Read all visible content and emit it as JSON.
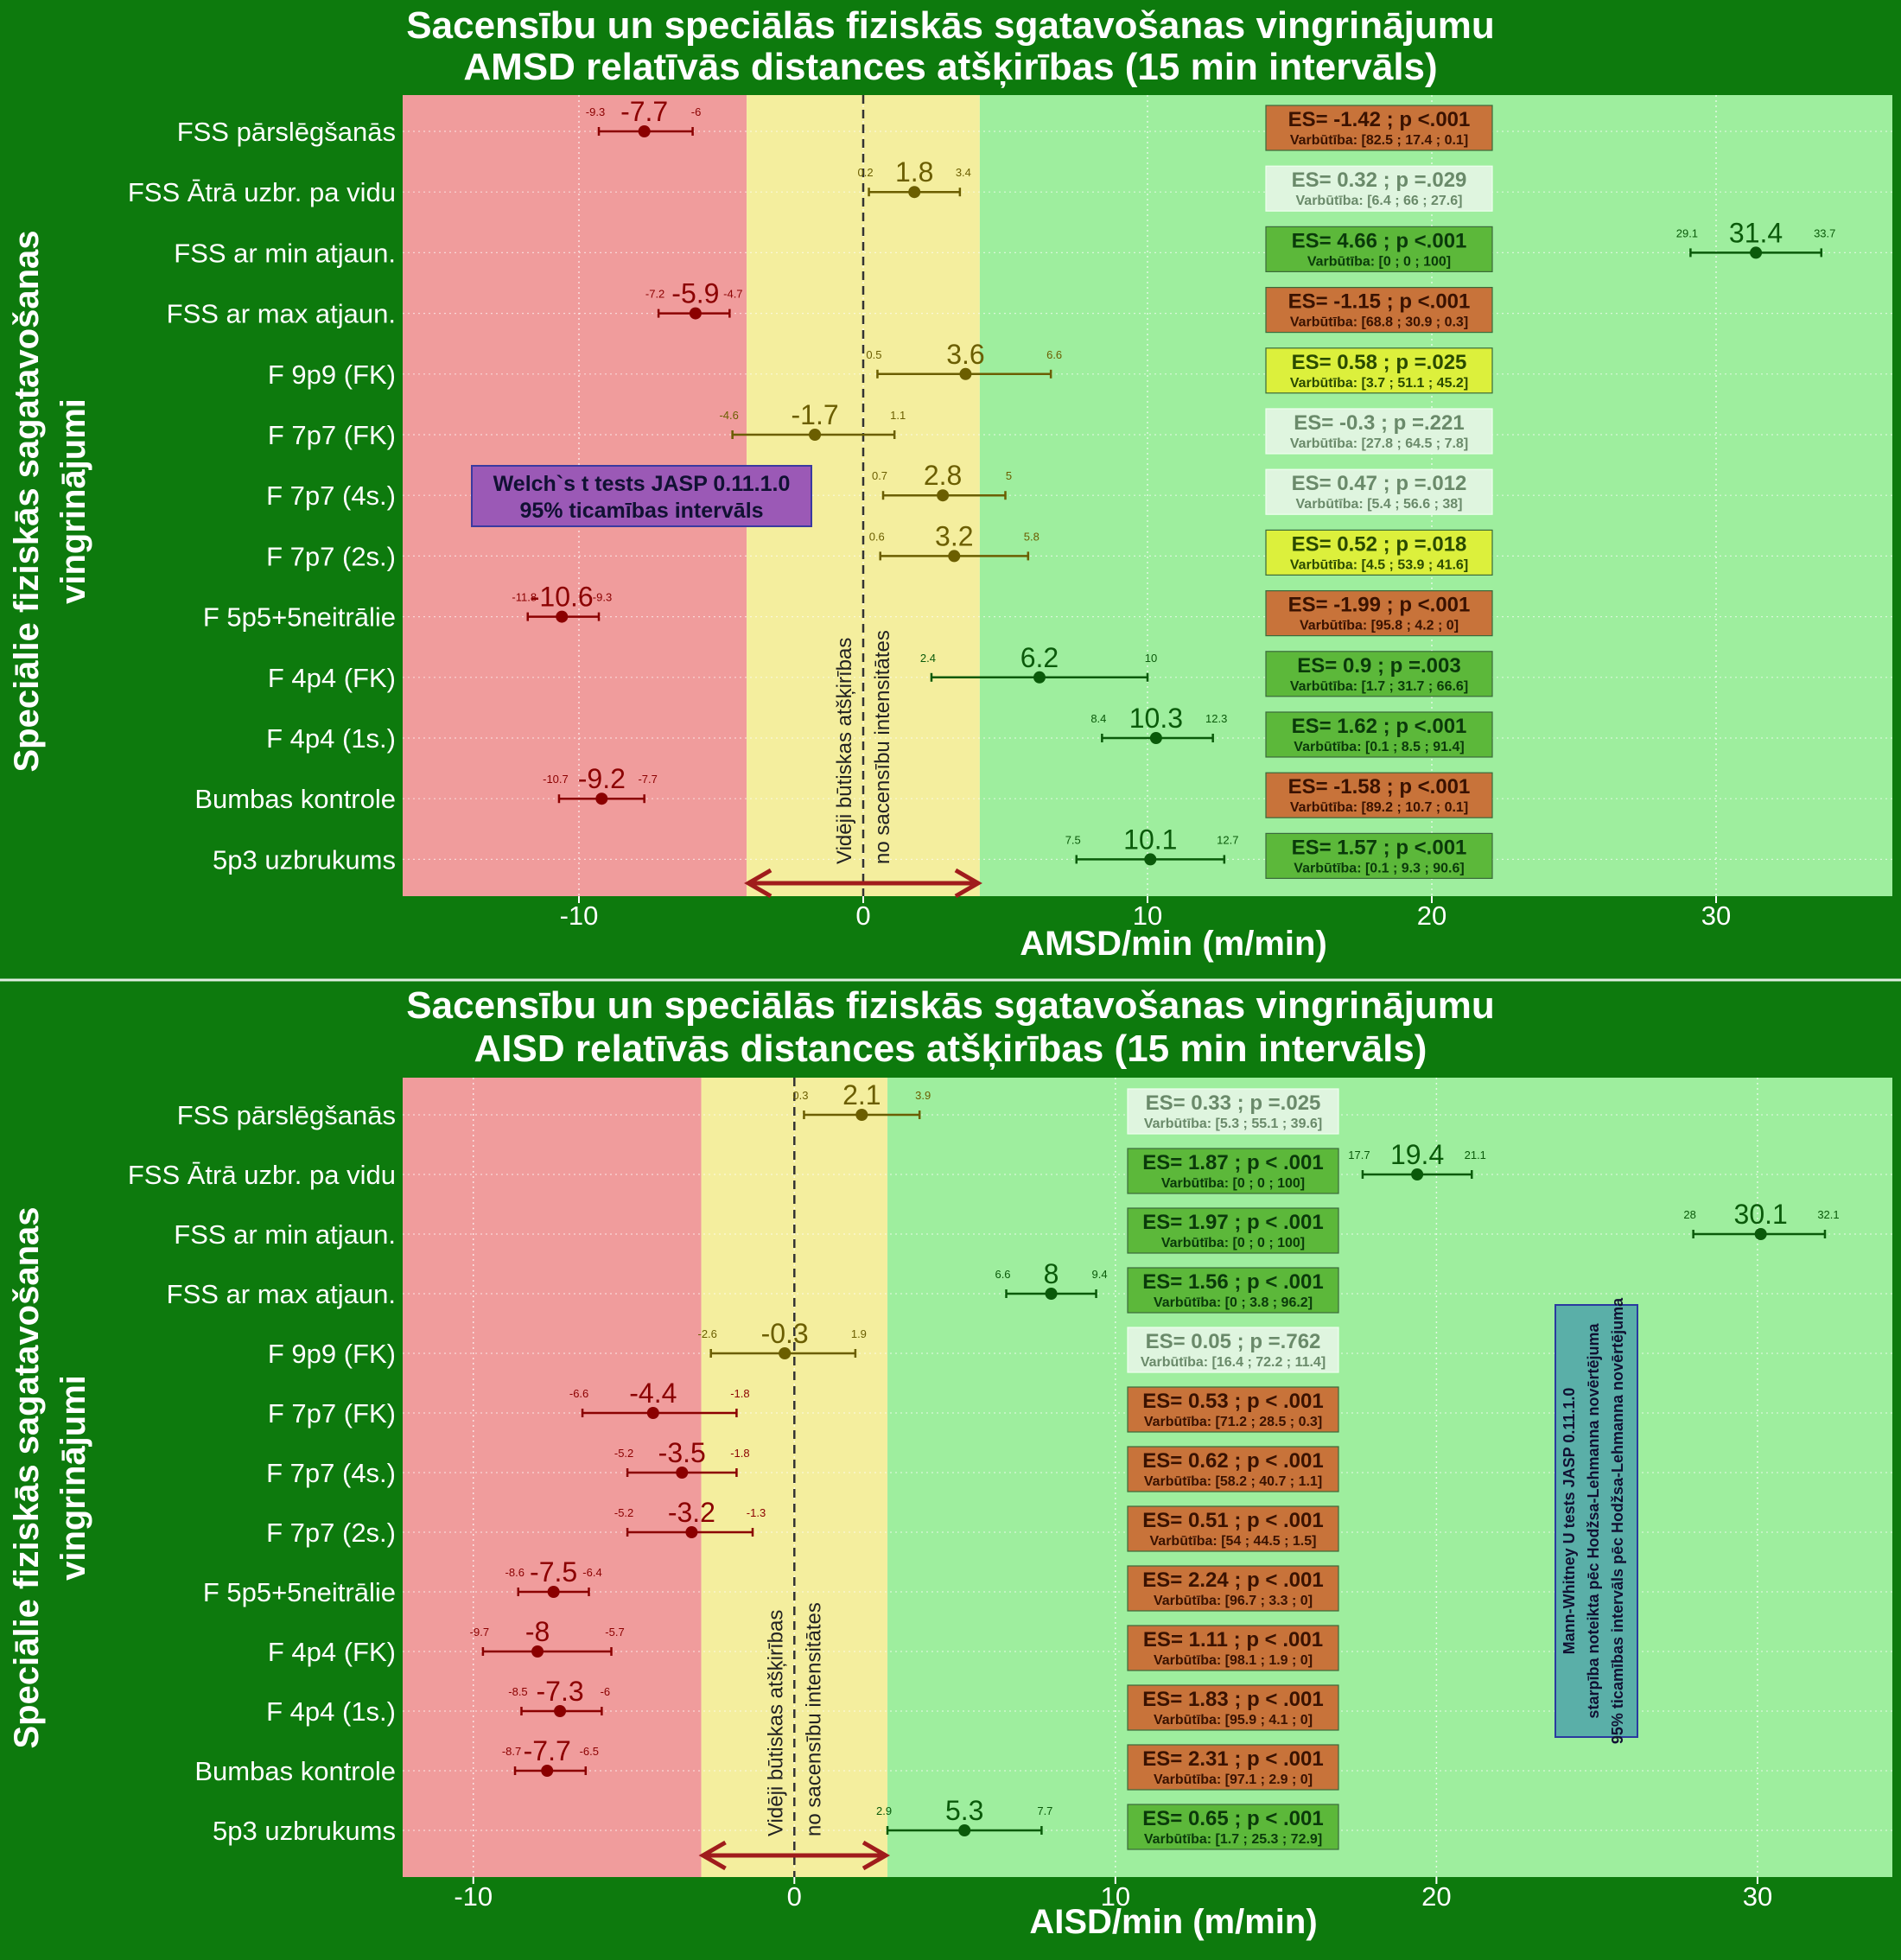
{
  "colors": {
    "background": "#0d7a0d",
    "zone_red": "#f09c9c",
    "zone_yellow": "#f4ee9e",
    "zone_green": "#9eee9e",
    "point_red": "#8b0000",
    "point_olive": "#6b5e00",
    "point_green": "#0a5a0a",
    "arrow": "#a01c1c",
    "es_red": "#c8733a",
    "es_green": "#5cb83a",
    "es_yellow": "#dcf03c",
    "es_pale": "#dff5df",
    "note_purple": "#9b59b6",
    "note_teal": "#5aafa8"
  },
  "chart_data": [
    {
      "type": "forest",
      "title_line1": "Sacensību un speciālās fiziskās sgatavošanas vingrinājumu",
      "title_line2": "AMSD relatīvās distances atšķirības (15 min intervāls)",
      "xlabel": "AMSD/min (m/min)",
      "ylabel_line1": "Speciālie fiziskās sagatavošanas",
      "ylabel_line2": "vingrinājumi",
      "xlim": [
        -16.2,
        36.2
      ],
      "xticks": [
        -10,
        0,
        10,
        20,
        30
      ],
      "zones": [
        {
          "name": "red",
          "from": -16.2,
          "to": -4.1
        },
        {
          "name": "yellow",
          "from": -4.1,
          "to": 4.1
        },
        {
          "name": "green",
          "from": 4.1,
          "to": 36.2
        }
      ],
      "zone_label_line1": "Vidēji būtiskas atšķirības",
      "zone_label_line2": "no sacensību intensitātes",
      "note_line1": "Welch`s t tests JASP 0.11.1.0",
      "note_line2": "95% ticamības intervāls",
      "rows": [
        {
          "label": "FSS pārslēgšanās",
          "est": -7.7,
          "lo": -9.3,
          "hi": -6,
          "est_label": "-7.7",
          "lo_label": "-9.3",
          "hi_label": "-6",
          "color": "red",
          "es_text": "ES= -1.42 ; p <.001",
          "prob_text": "Varbūtība: [82.5 ; 17.4 ; 0.1]",
          "es_color": "red"
        },
        {
          "label": "FSS Ātrā uzbr. pa vidu",
          "est": 1.8,
          "lo": 0.2,
          "hi": 3.4,
          "est_label": "1.8",
          "lo_label": "0.2",
          "hi_label": "3.4",
          "color": "olive",
          "es_text": "ES= 0.32 ; p =.029",
          "prob_text": "Varbūtība: [6.4 ; 66 ; 27.6]",
          "es_color": "pale"
        },
        {
          "label": "FSS ar min atjaun.",
          "est": 31.4,
          "lo": 29.1,
          "hi": 33.7,
          "est_label": "31.4",
          "lo_label": "29.1",
          "hi_label": "33.7",
          "color": "green",
          "es_text": "ES= 4.66 ; p <.001",
          "prob_text": "Varbūtība: [0 ; 0 ; 100]",
          "es_color": "green"
        },
        {
          "label": "FSS ar max atjaun.",
          "est": -5.9,
          "lo": -7.2,
          "hi": -4.7,
          "est_label": "-5.9",
          "lo_label": "-7.2",
          "hi_label": "-4.7",
          "color": "red",
          "es_text": "ES= -1.15 ; p <.001",
          "prob_text": "Varbūtība: [68.8 ; 30.9 ; 0.3]",
          "es_color": "red"
        },
        {
          "label": "F 9p9 (FK)",
          "est": 3.6,
          "lo": 0.5,
          "hi": 6.6,
          "est_label": "3.6",
          "lo_label": "0.5",
          "hi_label": "6.6",
          "color": "olive",
          "es_text": "ES= 0.58 ; p =.025",
          "prob_text": "Varbūtība: [3.7 ; 51.1 ; 45.2]",
          "es_color": "yellow"
        },
        {
          "label": "F 7p7 (FK)",
          "est": -1.7,
          "lo": -4.6,
          "hi": 1.1,
          "est_label": "-1.7",
          "lo_label": "-4.6",
          "hi_label": "1.1",
          "color": "olive",
          "es_text": "ES= -0.3 ; p =.221",
          "prob_text": "Varbūtība: [27.8 ; 64.5 ; 7.8]",
          "es_color": "pale"
        },
        {
          "label": "F 7p7 (4s.)",
          "est": 2.8,
          "lo": 0.7,
          "hi": 5,
          "est_label": "2.8",
          "lo_label": "0.7",
          "hi_label": "5",
          "color": "olive",
          "es_text": "ES= 0.47 ; p =.012",
          "prob_text": "Varbūtība: [5.4 ; 56.6 ; 38]",
          "es_color": "pale"
        },
        {
          "label": "F 7p7 (2s.)",
          "est": 3.2,
          "lo": 0.6,
          "hi": 5.8,
          "est_label": "3.2",
          "lo_label": "0.6",
          "hi_label": "5.8",
          "color": "olive",
          "es_text": "ES= 0.52 ; p =.018",
          "prob_text": "Varbūtība: [4.5 ; 53.9 ; 41.6]",
          "es_color": "yellow"
        },
        {
          "label": "F 5p5+5neitrālie",
          "est": -10.6,
          "lo": -11.8,
          "hi": -9.3,
          "est_label": "-10.6",
          "lo_label": "-11.8",
          "hi_label": "-9.3",
          "color": "red",
          "es_text": "ES= -1.99 ; p <.001",
          "prob_text": "Varbūtība: [95.8 ; 4.2 ; 0]",
          "es_color": "red"
        },
        {
          "label": "F 4p4 (FK)",
          "est": 6.2,
          "lo": 2.4,
          "hi": 10,
          "est_label": "6.2",
          "lo_label": "2.4",
          "hi_label": "10",
          "color": "green",
          "es_text": "ES= 0.9 ; p =.003",
          "prob_text": "Varbūtība: [1.7 ; 31.7 ; 66.6]",
          "es_color": "green"
        },
        {
          "label": "F 4p4 (1s.)",
          "est": 10.3,
          "lo": 8.4,
          "hi": 12.3,
          "est_label": "10.3",
          "lo_label": "8.4",
          "hi_label": "12.3",
          "color": "green",
          "es_text": "ES= 1.62 ; p <.001",
          "prob_text": "Varbūtība: [0.1 ; 8.5 ; 91.4]",
          "es_color": "green"
        },
        {
          "label": "Bumbas kontrole",
          "est": -9.2,
          "lo": -10.7,
          "hi": -7.7,
          "est_label": "-9.2",
          "lo_label": "-10.7",
          "hi_label": "-7.7",
          "color": "red",
          "es_text": "ES= -1.58 ; p <.001",
          "prob_text": "Varbūtība: [89.2 ; 10.7 ; 0.1]",
          "es_color": "red"
        },
        {
          "label": "5p3 uzbrukums",
          "est": 10.1,
          "lo": 7.5,
          "hi": 12.7,
          "est_label": "10.1",
          "lo_label": "7.5",
          "hi_label": "12.7",
          "color": "green",
          "es_text": "ES= 1.57 ; p <.001",
          "prob_text": "Varbūtība: [0.1 ; 9.3 ; 90.6]",
          "es_color": "green"
        }
      ]
    },
    {
      "type": "forest",
      "title_line1": "Sacensību un speciālās fiziskās sgatavošanas vingrinājumu",
      "title_line2": "AISD relatīvās distances atšķirības (15 min intervāls)",
      "xlabel": "AISD/min (m/min)",
      "ylabel_line1": "Speciālie fiziskās sagatavošanas",
      "ylabel_line2": "vingrinājumi",
      "xlim": [
        -12.2,
        34.2
      ],
      "xticks": [
        -10,
        0,
        10,
        20,
        30
      ],
      "zones": [
        {
          "name": "red",
          "from": -12.2,
          "to": -2.9
        },
        {
          "name": "yellow",
          "from": -2.9,
          "to": 2.9
        },
        {
          "name": "green",
          "from": 2.9,
          "to": 34.2
        }
      ],
      "zone_label_line1": "Vidēji būtiskas atšķirības",
      "zone_label_line2": "no sacensību intensitātes",
      "note_line1": "Mann-Whitney U tests JASP 0.11.1.0",
      "note_line2": "starpība noteikta pēc Hodžsa-Lehmanna novērtējuma",
      "note_line3": "95% ticamības intervāls pēc Hodžsa-Lehmanna novērtējuma",
      "rows": [
        {
          "label": "FSS pārslēgšanās",
          "est": 2.1,
          "lo": 0.3,
          "hi": 3.9,
          "est_label": "2.1",
          "lo_label": "0.3",
          "hi_label": "3.9",
          "color": "olive",
          "es_text": "ES= 0.33 ; p =.025",
          "prob_text": "Varbūtība: [5.3 ; 55.1 ; 39.6]",
          "es_color": "pale"
        },
        {
          "label": "FSS Ātrā uzbr. pa vidu",
          "est": 19.4,
          "lo": 17.7,
          "hi": 21.1,
          "est_label": "19.4",
          "lo_label": "17.7",
          "hi_label": "21.1",
          "color": "green",
          "es_text": "ES= 1.87 ; p < .001",
          "prob_text": "Varbūtība: [0 ; 0 ; 100]",
          "es_color": "green"
        },
        {
          "label": "FSS ar min atjaun.",
          "est": 30.1,
          "lo": 28,
          "hi": 32.1,
          "est_label": "30.1",
          "lo_label": "28",
          "hi_label": "32.1",
          "color": "green",
          "es_text": "ES= 1.97 ; p < .001",
          "prob_text": "Varbūtība: [0 ; 0 ; 100]",
          "es_color": "green"
        },
        {
          "label": "FSS ar max atjaun.",
          "est": 8,
          "lo": 6.6,
          "hi": 9.4,
          "est_label": "8",
          "lo_label": "6.6",
          "hi_label": "9.4",
          "color": "green",
          "es_text": "ES= 1.56 ; p < .001",
          "prob_text": "Varbūtība: [0 ; 3.8 ; 96.2]",
          "es_color": "green"
        },
        {
          "label": "F 9p9 (FK)",
          "est": -0.3,
          "lo": -2.6,
          "hi": 1.9,
          "est_label": "-0.3",
          "lo_label": "-2.6",
          "hi_label": "1.9",
          "color": "olive",
          "es_text": "ES= 0.05 ; p =.762",
          "prob_text": "Varbūtība: [16.4 ; 72.2 ; 11.4]",
          "es_color": "pale"
        },
        {
          "label": "F 7p7 (FK)",
          "est": -4.4,
          "lo": -6.6,
          "hi": -1.8,
          "est_label": "-4.4",
          "lo_label": "-6.6",
          "hi_label": "-1.8",
          "color": "red",
          "es_text": "ES= 0.53 ; p < .001",
          "prob_text": "Varbūtība: [71.2 ; 28.5 ; 0.3]",
          "es_color": "red"
        },
        {
          "label": "F 7p7 (4s.)",
          "est": -3.5,
          "lo": -5.2,
          "hi": -1.8,
          "est_label": "-3.5",
          "lo_label": "-5.2",
          "hi_label": "-1.8",
          "color": "red",
          "es_text": "ES= 0.62 ; p < .001",
          "prob_text": "Varbūtība: [58.2 ; 40.7 ; 1.1]",
          "es_color": "red"
        },
        {
          "label": "F 7p7 (2s.)",
          "est": -3.2,
          "lo": -5.2,
          "hi": -1.3,
          "est_label": "-3.2",
          "lo_label": "-5.2",
          "hi_label": "-1.3",
          "color": "red",
          "es_text": "ES= 0.51 ; p < .001",
          "prob_text": "Varbūtība: [54 ; 44.5 ; 1.5]",
          "es_color": "red"
        },
        {
          "label": "F 5p5+5neitrālie",
          "est": -7.5,
          "lo": -8.6,
          "hi": -6.4,
          "est_label": "-7.5",
          "lo_label": "-8.6",
          "hi_label": "-6.4",
          "color": "red",
          "es_text": "ES= 2.24 ; p < .001",
          "prob_text": "Varbūtība: [96.7 ; 3.3 ; 0]",
          "es_color": "red"
        },
        {
          "label": "F 4p4 (FK)",
          "est": -8,
          "lo": -9.7,
          "hi": -5.7,
          "est_label": "-8",
          "lo_label": "-9.7",
          "hi_label": "-5.7",
          "color": "red",
          "es_text": "ES= 1.11 ; p < .001",
          "prob_text": "Varbūtība: [98.1 ; 1.9 ; 0]",
          "es_color": "red"
        },
        {
          "label": "F 4p4 (1s.)",
          "est": -7.3,
          "lo": -8.5,
          "hi": -6,
          "est_label": "-7.3",
          "lo_label": "-8.5",
          "hi_label": "-6",
          "color": "red",
          "es_text": "ES= 1.83 ; p < .001",
          "prob_text": "Varbūtība: [95.9 ; 4.1 ; 0]",
          "es_color": "red"
        },
        {
          "label": "Bumbas kontrole",
          "est": -7.7,
          "lo": -8.7,
          "hi": -6.5,
          "est_label": "-7.7",
          "lo_label": "-8.7",
          "hi_label": "-6.5",
          "color": "red",
          "es_text": "ES= 2.31 ; p < .001",
          "prob_text": "Varbūtība: [97.1 ; 2.9 ; 0]",
          "es_color": "red"
        },
        {
          "label": "5p3 uzbrukums",
          "est": 5.3,
          "lo": 2.9,
          "hi": 7.7,
          "est_label": "5.3",
          "lo_label": "2.9",
          "hi_label": "7.7",
          "color": "green",
          "es_text": "ES= 0.65 ; p < .001",
          "prob_text": "Varbūtība: [1.7 ; 25.3 ; 72.9]",
          "es_color": "green"
        }
      ]
    }
  ]
}
